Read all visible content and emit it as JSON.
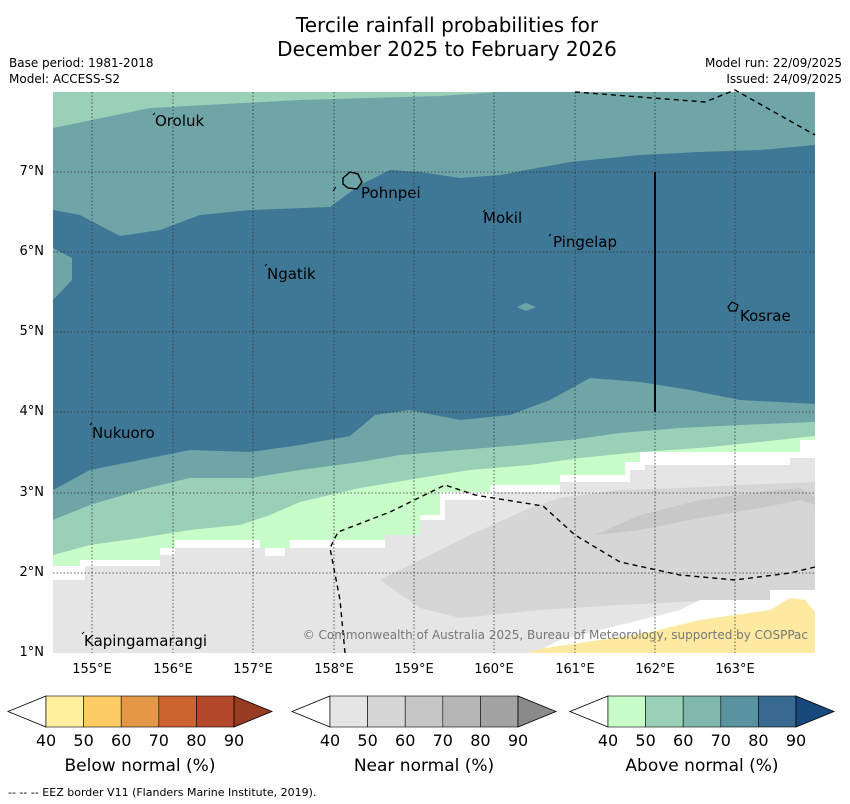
{
  "header": {
    "title_line1": "Tercile rainfall probabilities for",
    "title_line2": "December 2025 to February 2026",
    "base_period": "Base period: 1981-2018",
    "model": "Model: ACCESS-S2",
    "model_run": "Model run: 22/09/2025",
    "issued": "Issued: 24/09/2025"
  },
  "axes": {
    "lat_labels": [
      "7°N",
      "6°N",
      "5°N",
      "4°N",
      "3°N",
      "2°N",
      "1°N"
    ],
    "lon_labels": [
      "155°E",
      "156°E",
      "157°E",
      "158°E",
      "159°E",
      "160°E",
      "161°E",
      "162°E",
      "163°E"
    ]
  },
  "places": {
    "oroluk": "Oroluk",
    "pohnpei": "Pohnpei",
    "mokil": "Mokil",
    "pingelap": "Pingelap",
    "ngatik": "Ngatik",
    "kosrae": "Kosrae",
    "nukuoro": "Nukuoro",
    "kapingamarangi": "Kapingamarangi"
  },
  "copyright": "© Commonwealth of Australia 2025, Bureau of Meteorology, supported by COSPPac",
  "legend": {
    "ticks": [
      "40",
      "50",
      "60",
      "70",
      "80",
      "90"
    ],
    "below_title": "Below normal (%)",
    "near_title": "Near normal (%)",
    "above_title": "Above normal (%)",
    "below_colors": [
      "#fff0a0",
      "#fecc65",
      "#e39747",
      "#cd6330",
      "#b3482a",
      "#973b23"
    ],
    "near_colors": [
      "#e5e5e5",
      "#d6d6d6",
      "#c6c6c6",
      "#b5b5b5",
      "#a3a3a3",
      "#8a8a8a"
    ],
    "above_colors": [
      "#c8fcc8",
      "#9bd0b8",
      "#80b8ad",
      "#5a93a0",
      "#376a8e",
      "#17487e"
    ]
  },
  "map_colors": {
    "above_50": "#9bd0b8",
    "above_60": "#6fa5a7",
    "above_70": "#3f7797",
    "above_40": "#c8fcc8",
    "near_40": "#e5e5e5",
    "near_50": "#d6d6d6",
    "near_60": "#c8c8c8",
    "below_40": "#fde9a0"
  },
  "footnote": "-- -- -- EEZ border V11 (Flanders Marine Institute, 2019)."
}
